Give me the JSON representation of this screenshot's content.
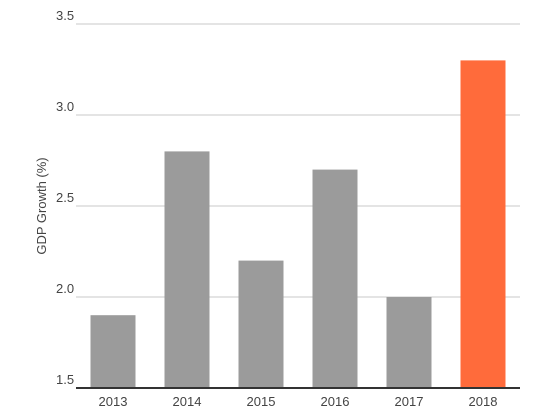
{
  "chart_data": {
    "type": "bar",
    "categories": [
      "2013",
      "2014",
      "2015",
      "2016",
      "2017",
      "2018"
    ],
    "values": [
      1.9,
      2.8,
      2.2,
      2.7,
      2.0,
      3.3
    ],
    "title": "",
    "xlabel": "",
    "ylabel": "GDP Growth (%)",
    "ylim": [
      1.5,
      3.5
    ],
    "yticks": [
      "1.5",
      "2.0",
      "2.5",
      "3.0",
      "3.5"
    ],
    "grid": true,
    "colors": {
      "default_bar": "#9b9b9b",
      "highlight_bar": "#ff6b3b",
      "highlight_category": "2018"
    }
  }
}
